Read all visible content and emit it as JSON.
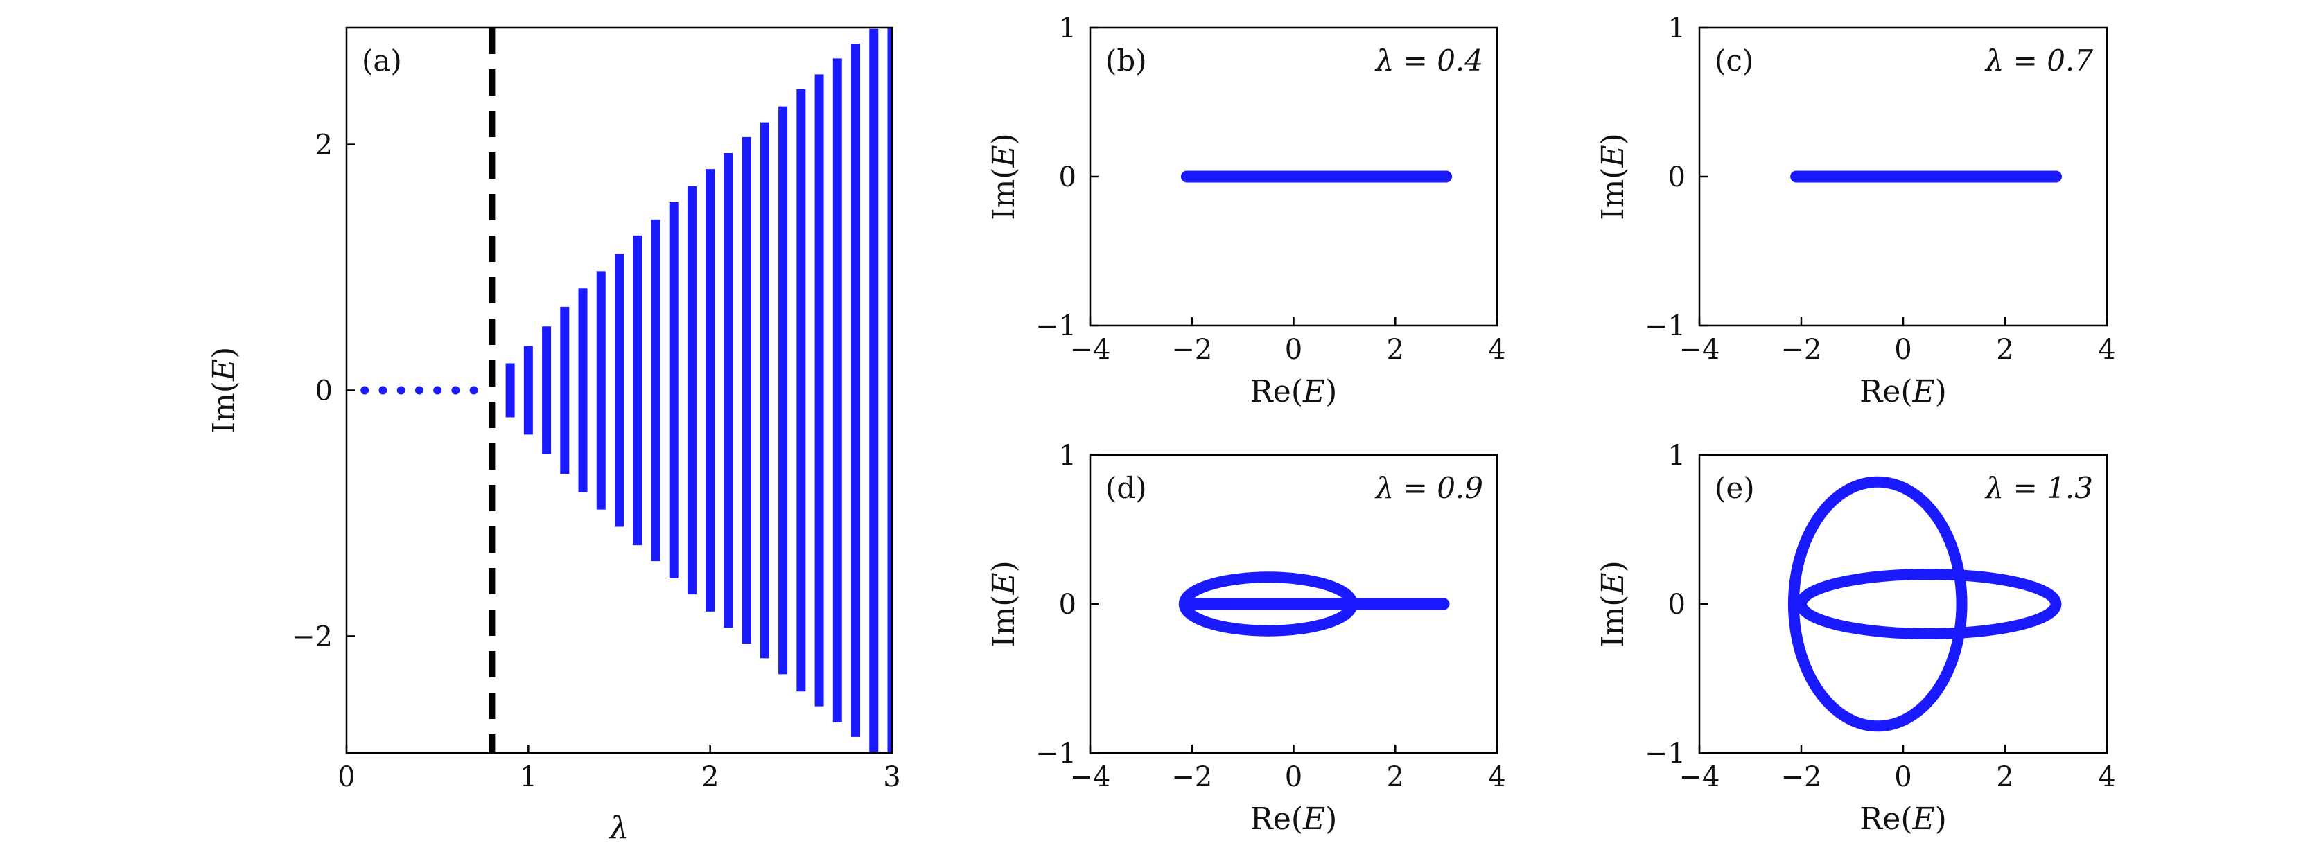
{
  "chart_data": [
    {
      "panel": "(a)",
      "type": "scatter",
      "xlabel": "λ",
      "ylabel": "Im(E)",
      "xlim": [
        0,
        3
      ],
      "ylim": [
        -2.95,
        2.95
      ],
      "xticks": [
        0,
        1,
        2,
        3
      ],
      "yticks": [
        -2,
        0,
        2
      ],
      "threshold_line": {
        "x": 0.8,
        "style": "dashed",
        "color": "#000000"
      },
      "series": [
        {
          "lambda_real": [
            0.1,
            0.2,
            0.3,
            0.4,
            0.5,
            0.6,
            0.7
          ],
          "lambda_complex": [
            0.9,
            1.0,
            1.1,
            1.2,
            1.3,
            1.4,
            1.5,
            1.6,
            1.7,
            1.8,
            1.9,
            2.0,
            2.1,
            2.2,
            2.3,
            2.4,
            2.5,
            2.6,
            2.7,
            2.8,
            2.9,
            3.0
          ],
          "im_extent": [
            0.22,
            0.36,
            0.52,
            0.68,
            0.83,
            0.97,
            1.11,
            1.26,
            1.39,
            1.53,
            1.66,
            1.8,
            1.93,
            2.06,
            2.18,
            2.31,
            2.45,
            2.57,
            2.7,
            2.82,
            2.94,
            2.97
          ]
        }
      ],
      "colors": {
        "data": "#1a1aff",
        "threshold": "#000000"
      }
    },
    {
      "panel": "(b)",
      "type": "scatter",
      "annotation": "λ = 0.4",
      "xlabel": "Re(E)",
      "ylabel": "Im(E)",
      "xlim": [
        -4,
        4
      ],
      "ylim": [
        -1,
        1
      ],
      "xticks": [
        -4,
        -2,
        0,
        2,
        4
      ],
      "yticks": [
        -1,
        0,
        1
      ],
      "segment": {
        "re": [
          -2.1,
          3.0
        ],
        "im": 0
      }
    },
    {
      "panel": "(c)",
      "type": "scatter",
      "annotation": "λ = 0.7",
      "xlabel": "Re(E)",
      "ylabel": "Im(E)",
      "xlim": [
        -4,
        4
      ],
      "ylim": [
        -1,
        1
      ],
      "xticks": [
        -4,
        -2,
        0,
        2,
        4
      ],
      "yticks": [
        -1,
        0,
        1
      ],
      "segment": {
        "re": [
          -2.1,
          3.0
        ],
        "im": 0
      }
    },
    {
      "panel": "(d)",
      "type": "scatter",
      "annotation": "λ = 0.9",
      "xlabel": "Re(E)",
      "ylabel": "Im(E)",
      "xlim": [
        -4,
        4
      ],
      "ylim": [
        -1,
        1
      ],
      "xticks": [
        -4,
        -2,
        0,
        2,
        4
      ],
      "yticks": [
        -1,
        0,
        1
      ],
      "segment": {
        "re": [
          -2.1,
          2.95
        ],
        "im": 0
      },
      "ellipses": [
        {
          "center_re": -0.5,
          "center_im": 0,
          "half_width_re": 1.65,
          "half_height_im": 0.18
        }
      ]
    },
    {
      "panel": "(e)",
      "type": "scatter",
      "annotation": "λ = 1.3",
      "xlabel": "Re(E)",
      "ylabel": "Im(E)",
      "xlim": [
        -4,
        4
      ],
      "ylim": [
        -1,
        1
      ],
      "xticks": [
        -4,
        -2,
        0,
        2,
        4
      ],
      "yticks": [
        -1,
        0,
        1
      ],
      "ellipses": [
        {
          "center_re": -0.5,
          "center_im": 0,
          "half_width_re": 1.65,
          "half_height_im": 0.82
        },
        {
          "center_re": 0.5,
          "center_im": 0,
          "half_width_re": 2.5,
          "half_height_im": 0.2
        }
      ]
    }
  ]
}
